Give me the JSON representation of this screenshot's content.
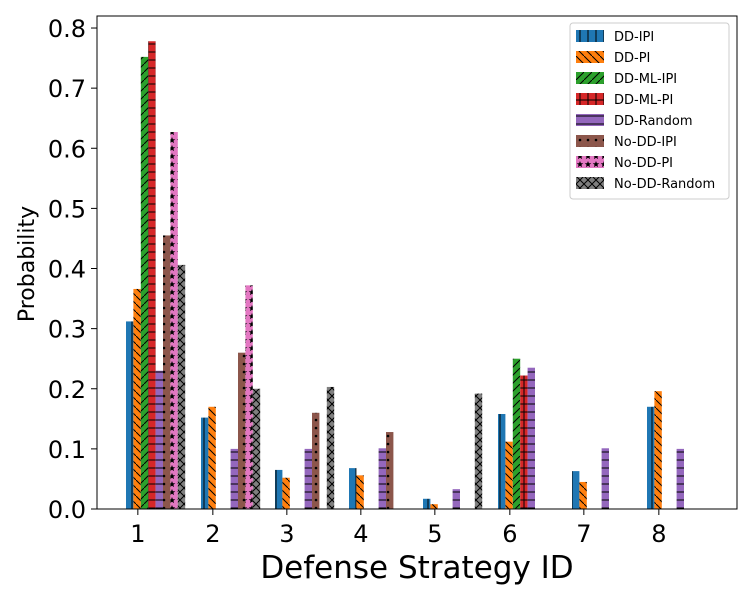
{
  "chart_data": {
    "type": "bar",
    "xlabel": "Defense Strategy ID",
    "ylabel": "Probability",
    "categories": [
      "1",
      "2",
      "3",
      "4",
      "5",
      "6",
      "7",
      "8"
    ],
    "ylim": [
      0,
      0.82
    ],
    "yticks": [
      "0.0",
      "0.1",
      "0.2",
      "0.3",
      "0.4",
      "0.5",
      "0.6",
      "0.7",
      "0.8"
    ],
    "grid": false,
    "legend": "top-right",
    "series": [
      {
        "name": "DD-IPI",
        "color": "#1f77b4",
        "hatch": "|",
        "values": [
          0.312,
          0.152,
          0.065,
          0.068,
          0.017,
          0.158,
          0.063,
          0.17
        ]
      },
      {
        "name": "DD-PI",
        "color": "#ff7f0e",
        "hatch": "\\",
        "values": [
          0.366,
          0.17,
          0.052,
          0.056,
          0.008,
          0.112,
          0.045,
          0.196
        ]
      },
      {
        "name": "DD-ML-IPI",
        "color": "#2ca02c",
        "hatch": "/",
        "values": [
          0.752,
          0,
          0,
          0,
          0,
          0.25,
          0,
          0
        ]
      },
      {
        "name": "DD-ML-PI",
        "color": "#d62728",
        "hatch": "+",
        "values": [
          0.778,
          0,
          0,
          0,
          0,
          0.222,
          0,
          0
        ]
      },
      {
        "name": "DD-Random",
        "color": "#9467bd",
        "hatch": "-",
        "values": [
          0.23,
          0.1,
          0.1,
          0.101,
          0.033,
          0.235,
          0.101,
          0.1
        ]
      },
      {
        "name": "No-DD-IPI",
        "color": "#8c564b",
        "hatch": ".",
        "values": [
          0.455,
          0.26,
          0.16,
          0.128,
          0,
          0,
          0,
          0
        ]
      },
      {
        "name": "No-DD-PI",
        "color": "#e377c2",
        "hatch": "*",
        "values": [
          0.627,
          0.372,
          0,
          0,
          0,
          0,
          0,
          0
        ]
      },
      {
        "name": "No-DD-Random",
        "color": "#7f7f7f",
        "hatch": "x",
        "values": [
          0.406,
          0.2,
          0.203,
          0,
          0.192,
          0,
          0,
          0
        ]
      }
    ]
  }
}
